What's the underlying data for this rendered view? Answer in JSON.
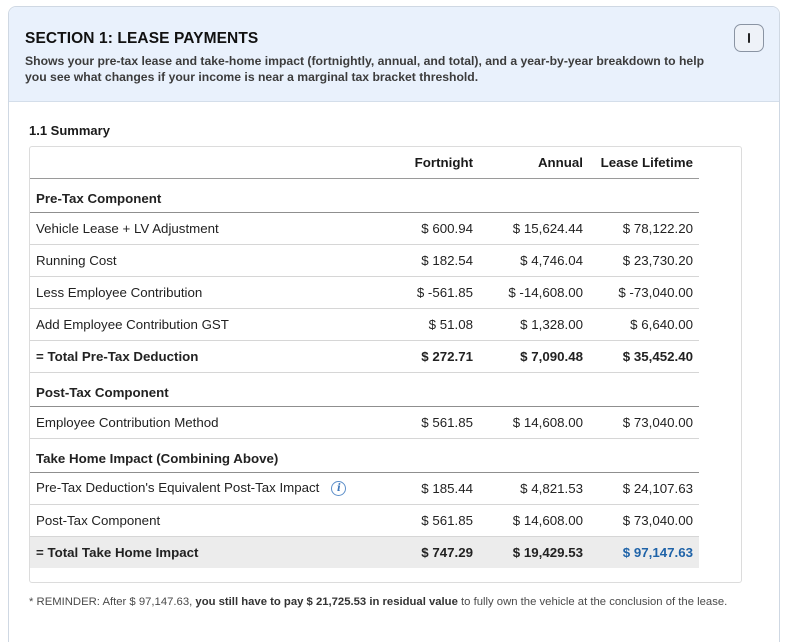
{
  "section": {
    "title": "SECTION 1: LEASE PAYMENTS",
    "description": "Shows your pre-tax lease and take-home impact (fortnightly, annual, and total), and a year-by-year breakdown to help you see what changes if your income is near a marginal tax bracket threshold.",
    "collapse_icon": "minus-icon"
  },
  "summary": {
    "heading": "1.1 Summary",
    "columns": [
      "Fortnight",
      "Annual",
      "Lease Lifetime"
    ],
    "pre_tax": {
      "heading": "Pre-Tax Component",
      "rows": [
        {
          "label": "Vehicle Lease + LV Adjustment",
          "fortnight": "$ 600.94",
          "annual": "$ 15,624.44",
          "lifetime": "$ 78,122.20"
        },
        {
          "label": "Running Cost",
          "fortnight": "$ 182.54",
          "annual": "$ 4,746.04",
          "lifetime": "$ 23,730.20"
        },
        {
          "label": "Less Employee Contribution",
          "fortnight": "$ -561.85",
          "annual": "$ -14,608.00",
          "lifetime": "$ -73,040.00"
        },
        {
          "label": "Add Employee Contribution GST",
          "fortnight": "$ 51.08",
          "annual": "$ 1,328.00",
          "lifetime": "$ 6,640.00"
        }
      ],
      "total": {
        "label": "= Total Pre-Tax Deduction",
        "fortnight": "$ 272.71",
        "annual": "$ 7,090.48",
        "lifetime": "$ 35,452.40"
      }
    },
    "post_tax": {
      "heading": "Post-Tax Component",
      "rows": [
        {
          "label": "Employee Contribution Method",
          "fortnight": "$ 561.85",
          "annual": "$ 14,608.00",
          "lifetime": "$ 73,040.00"
        }
      ]
    },
    "take_home": {
      "heading": "Take Home Impact (Combining Above)",
      "rows": [
        {
          "label": "Pre-Tax Deduction's Equivalent Post-Tax Impact",
          "fortnight": "$ 185.44",
          "annual": "$ 4,821.53",
          "lifetime": "$ 24,107.63",
          "info_icon": "info-icon"
        },
        {
          "label": "Post-Tax Component",
          "fortnight": "$ 561.85",
          "annual": "$ 14,608.00",
          "lifetime": "$ 73,040.00"
        }
      ],
      "total": {
        "label": "= Total Take Home Impact",
        "fortnight": "$ 747.29",
        "annual": "$ 19,429.53",
        "lifetime": "$ 97,147.63"
      }
    },
    "accent_color": "#1f63a8"
  },
  "reminder": {
    "prefix": "* REMINDER: After $ 97,147.63, ",
    "bold": "you still have to pay $ 21,725.53 in residual value",
    "suffix": " to fully own the vehicle at the conclusion of the lease."
  }
}
